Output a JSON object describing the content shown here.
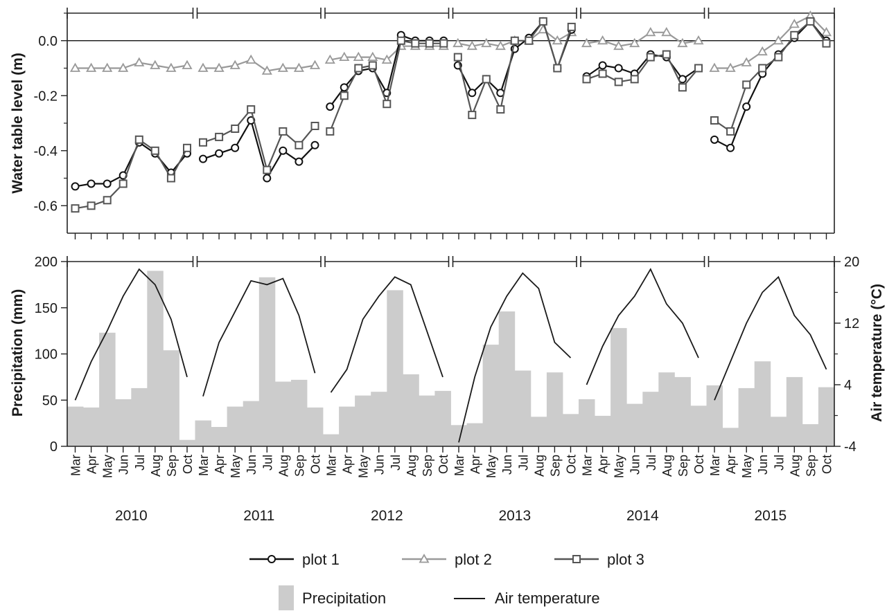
{
  "chart_data": [
    {
      "type": "line",
      "ylabel": "Water table level (m)",
      "ylim": [
        -0.7,
        0.1
      ],
      "yticks": [
        "-0.6",
        "-0.4",
        "-0.2",
        "0.0"
      ],
      "reference_line_y": 0,
      "years": [
        "2010",
        "2011",
        "2012",
        "2013",
        "2014",
        "2015"
      ],
      "months": [
        "Mar",
        "Apr",
        "May",
        "Jun",
        "Jul",
        "Aug",
        "Sep",
        "Oct"
      ],
      "x_note": "values per year: Mar..Oct (with an extra mid-month reading in some years)",
      "series": [
        {
          "name": "plot 1",
          "marker": "circle",
          "color": "#111111",
          "values": {
            "2010": [
              -0.53,
              -0.52,
              -0.52,
              -0.49,
              -0.37,
              -0.41,
              -0.48,
              -0.41
            ],
            "2011": [
              -0.43,
              -0.41,
              -0.39,
              -0.29,
              -0.5,
              -0.4,
              -0.44,
              -0.38
            ],
            "2012": [
              -0.24,
              -0.17,
              -0.11,
              -0.1,
              -0.19,
              0.02,
              0.0,
              0.0,
              0.0
            ],
            "2013": [
              -0.09,
              -0.19,
              -0.14,
              -0.19,
              -0.03,
              0.01,
              0.07,
              -0.1,
              0.04
            ],
            "2014": [
              -0.13,
              -0.09,
              -0.1,
              -0.12,
              -0.05,
              -0.06,
              -0.14,
              -0.1
            ],
            "2015": [
              -0.36,
              -0.39,
              -0.24,
              -0.12,
              -0.05,
              0.01,
              0.07,
              0.0
            ]
          }
        },
        {
          "name": "plot 2",
          "marker": "triangle",
          "color": "#999999",
          "values": {
            "2010": [
              -0.1,
              -0.1,
              -0.1,
              -0.1,
              -0.08,
              -0.09,
              -0.1,
              -0.09
            ],
            "2011": [
              -0.1,
              -0.1,
              -0.09,
              -0.07,
              -0.11,
              -0.1,
              -0.1,
              -0.09
            ],
            "2012": [
              -0.07,
              -0.06,
              -0.06,
              -0.06,
              -0.07,
              -0.02,
              -0.02,
              -0.02,
              -0.02
            ],
            "2013": [
              -0.01,
              -0.02,
              -0.01,
              -0.02,
              0.0,
              0.0,
              0.04,
              0.0,
              0.03
            ],
            "2014": [
              -0.01,
              0.0,
              -0.02,
              -0.01,
              0.03,
              0.03,
              -0.01,
              0.0
            ],
            "2015": [
              -0.1,
              -0.1,
              -0.08,
              -0.04,
              0.0,
              0.06,
              0.09,
              0.03
            ]
          }
        },
        {
          "name": "plot 3",
          "marker": "square",
          "color": "#555555",
          "values": {
            "2010": [
              -0.61,
              -0.6,
              -0.58,
              -0.52,
              -0.36,
              -0.4,
              -0.5,
              -0.39
            ],
            "2011": [
              -0.37,
              -0.35,
              -0.32,
              -0.25,
              -0.47,
              -0.33,
              -0.38,
              -0.31
            ],
            "2012": [
              -0.33,
              -0.2,
              -0.1,
              -0.09,
              -0.23,
              0.0,
              -0.01,
              -0.01,
              -0.01
            ],
            "2013": [
              -0.06,
              -0.27,
              -0.14,
              -0.25,
              0.0,
              0.0,
              0.07,
              -0.1,
              0.05
            ],
            "2014": [
              -0.14,
              -0.12,
              -0.15,
              -0.14,
              -0.06,
              -0.05,
              -0.17,
              -0.1
            ],
            "2015": [
              -0.29,
              -0.33,
              -0.16,
              -0.1,
              -0.06,
              0.02,
              0.07,
              -0.01
            ]
          }
        }
      ]
    },
    {
      "type": "bar",
      "ylabel": "Precipitation (mm)",
      "y2label": "Air temperature (°C)",
      "ylim": [
        0,
        200
      ],
      "y2lim": [
        -4,
        20
      ],
      "yticks": [
        "0",
        "50",
        "100",
        "150",
        "200"
      ],
      "y2ticks": [
        "-4",
        "4",
        "12",
        "20"
      ],
      "years": [
        "2010",
        "2011",
        "2012",
        "2013",
        "2014",
        "2015"
      ],
      "months": [
        "Mar",
        "Apr",
        "May",
        "Jun",
        "Jul",
        "Aug",
        "Sep",
        "Oct"
      ],
      "series": [
        {
          "name": "Precipitation",
          "color": "#cccccc",
          "values": {
            "2010": [
              43,
              42,
              123,
              51,
              63,
              190,
              104,
              7
            ],
            "2011": [
              28,
              21,
              43,
              49,
              183,
              70,
              72,
              42
            ],
            "2012": [
              13,
              43,
              55,
              59,
              169,
              78,
              55,
              60
            ],
            "2013": [
              23,
              25,
              110,
              146,
              82,
              32,
              80,
              35
            ],
            "2014": [
              51,
              33,
              128,
              46,
              59,
              80,
              75,
              44
            ],
            "2015": [
              66,
              20,
              63,
              92,
              32,
              75,
              24,
              64
            ]
          }
        },
        {
          "name": "Air temperature",
          "color": "#1a1a1a",
          "values": {
            "2010": [
              2.0,
              7.0,
              11.0,
              15.5,
              19.0,
              17.0,
              12.5,
              5.0
            ],
            "2011": [
              2.5,
              9.5,
              13.5,
              17.5,
              17.0,
              17.8,
              13.0,
              5.5
            ],
            "2012": [
              3.0,
              6.0,
              12.5,
              15.5,
              18.0,
              17.0,
              11.0,
              5.0
            ],
            "2013": [
              -3.5,
              5.0,
              11.5,
              15.5,
              18.5,
              16.5,
              9.5,
              7.5
            ],
            "2014": [
              4.0,
              9.0,
              13.0,
              15.5,
              19.0,
              14.5,
              12.0,
              7.5
            ],
            "2015": [
              2.0,
              7.0,
              12.0,
              16.0,
              18.0,
              13.0,
              10.5,
              6.0
            ]
          }
        }
      ]
    }
  ],
  "legend": {
    "top": [
      "plot 1",
      "plot 2",
      "plot 3"
    ],
    "bottom": [
      "Precipitation",
      "Air temperature"
    ]
  }
}
